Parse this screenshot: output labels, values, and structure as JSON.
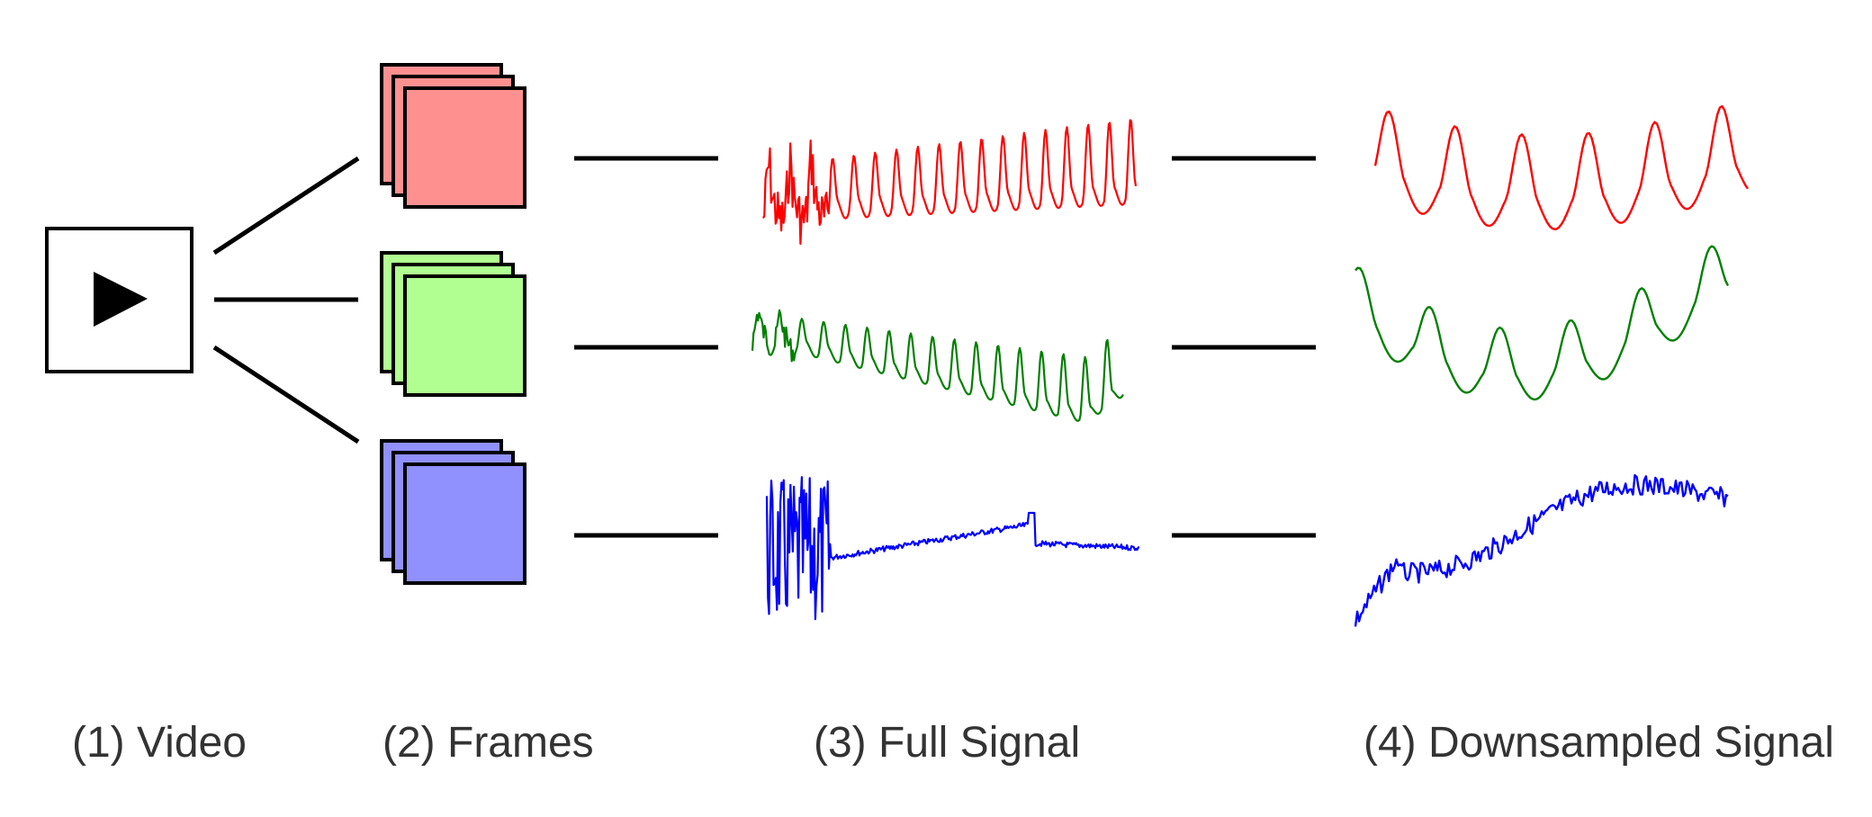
{
  "captions": {
    "video": "(1) Video",
    "frames": "(2) Frames",
    "full_signal": "(3) Full Signal",
    "downsampled_signal": "(4) Downsampled Signal"
  },
  "channels": [
    {
      "name": "red",
      "frame_fill": "#ff9090",
      "signal_color": "#ff0000"
    },
    {
      "name": "green",
      "frame_fill": "#b0ff90",
      "signal_color": "#008000"
    },
    {
      "name": "blue",
      "frame_fill": "#9090ff",
      "signal_color": "#0000ff"
    }
  ],
  "icons": {
    "video": "play-icon"
  }
}
